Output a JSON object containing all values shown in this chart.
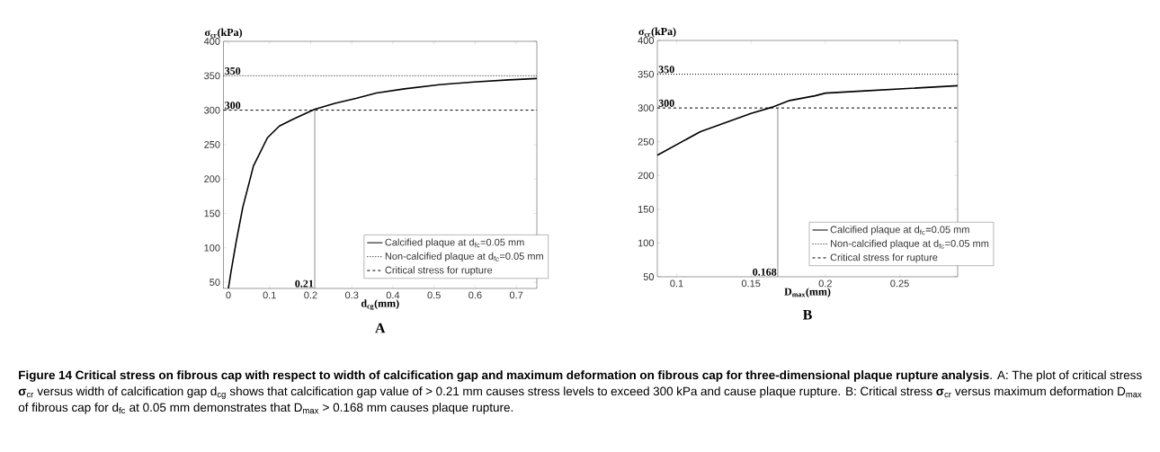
{
  "chart_data": [
    {
      "type": "line",
      "title": "A",
      "xlabel": "d$_{cg}$(mm)",
      "ylabel": "σ$_{cr}$(kPa)",
      "xlim": [
        -0.012,
        0.75
      ],
      "ylim": [
        41,
        400
      ],
      "xticks": [
        0,
        0.1,
        0.2,
        0.3,
        0.4,
        0.5,
        0.6,
        0.7
      ],
      "yticks": [
        50,
        100,
        150,
        200,
        250,
        300,
        350,
        400
      ],
      "legend": "bottom right",
      "grid": false,
      "series": [
        {
          "name": "Calcified plaque at d$_{fc}$=0.05 mm",
          "color": "#000000",
          "line_style": "solid",
          "x": [
            0,
            0.006,
            0.019,
            0.035,
            0.061,
            0.095,
            0.124,
            0.158,
            0.209,
            0.259,
            0.31,
            0.36,
            0.428,
            0.513,
            0.597,
            0.682,
            0.75
          ],
          "values": [
            41,
            64,
            109,
            159,
            219,
            260,
            277,
            287,
            301,
            310,
            317,
            325,
            331,
            337,
            341,
            344,
            346
          ]
        },
        {
          "name": "Non-calcified plaque at d$_{fc}$=0.05 mm",
          "color": "#000000",
          "line_style": "dotted",
          "x": [
            -0.012,
            0.75
          ],
          "values": [
            350,
            350
          ]
        },
        {
          "name": "Critical stress for rupture",
          "color": "#000000",
          "line_style": "dashed",
          "x": [
            -0.012,
            0.75
          ],
          "values": [
            300,
            300
          ]
        },
        {
          "color": "#444444",
          "line_style": "solid",
          "x": [
            0.21,
            0.21
          ],
          "values": [
            41,
            300
          ]
        }
      ],
      "annotations": [
        {
          "text": "350",
          "x": -0.012,
          "y": 350
        },
        {
          "text": "300",
          "x": -0.012,
          "y": 300
        },
        {
          "text": "0.21",
          "x": 0.21,
          "y": 41
        },
        "**Figure 14 Critical stress on fibrous cap with respect to width of calcification gap and maximum deformation on fibrous cap for three-dimensional plaque rupture analysis**. A: The plot of critical stress **σ**$_{cr}$ versus width of calcification gap d$_{cg}$ shows that calcification gap value of > 0.21 mm causes stress levels to exceed 300 kPa and cause plaque rupture. B: Critical stress **σ**$_{cr}$ versus maximum deformation D$_{max}$ of fibrous cap for d$_{fc}$ at 0.05 mm demonstrates that D$_{max}$ > 0.168 mm causes plaque rupture."
      ]
    },
    {
      "type": "line",
      "title": "B",
      "xlabel": "D$_{max}$(mm)",
      "ylabel": "σ$_{cr}$(kPa)",
      "xlim": [
        0.087,
        0.289
      ],
      "ylim": [
        50,
        400
      ],
      "xticks": [
        0.1,
        0.15,
        0.2,
        0.25
      ],
      "yticks": [
        50,
        100,
        150,
        200,
        250,
        300,
        350,
        400
      ],
      "legend": "bottom right",
      "grid": false,
      "series": [
        {
          "name": "Calcified plaque at d$_{fc}$=0.05 mm",
          "color": "#000000",
          "line_style": "solid",
          "x": [
            0.087,
            0.116,
            0.15,
            0.164,
            0.176,
            0.193,
            0.2,
            0.224,
            0.289
          ],
          "values": [
            230,
            265,
            292,
            301,
            311,
            318,
            322,
            325,
            333
          ]
        },
        {
          "name": "Non-calcified plaque at d$_{fc}$=0.05 mm",
          "color": "#000000",
          "line_style": "dotted",
          "x": [
            0.087,
            0.289
          ],
          "values": [
            350,
            350
          ]
        },
        {
          "name": "Critical stress for rupture",
          "color": "#000000",
          "line_style": "dashed",
          "x": [
            0.087,
            0.289
          ],
          "values": [
            300,
            300
          ]
        },
        {
          "color": "#444444",
          "line_style": "solid",
          "x": [
            0.168,
            0.168
          ],
          "values": [
            50,
            300
          ]
        }
      ],
      "annotations": [
        {
          "text": "350",
          "x": 0.087,
          "y": 350
        },
        {
          "text": "300",
          "x": 0.087,
          "y": 300
        },
        {
          "text": "0.168",
          "x": 0.168,
          "y": 50
        }
      ]
    }
  ]
}
